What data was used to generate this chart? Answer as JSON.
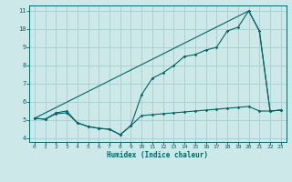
{
  "xlabel": "Humidex (Indice chaleur)",
  "background_color": "#cce8e8",
  "grid_color": "#aacccc",
  "line_color": "#006666",
  "xlim": [
    -0.5,
    23.5
  ],
  "ylim": [
    3.8,
    11.3
  ],
  "yticks": [
    4,
    5,
    6,
    7,
    8,
    9,
    10,
    11
  ],
  "xticks": [
    0,
    1,
    2,
    3,
    4,
    5,
    6,
    7,
    8,
    9,
    10,
    11,
    12,
    13,
    14,
    15,
    16,
    17,
    18,
    19,
    20,
    21,
    22,
    23
  ],
  "series_zigzag": {
    "x": [
      0,
      1,
      2,
      3,
      4,
      5,
      6,
      7,
      8,
      9,
      10,
      11,
      12,
      13,
      14,
      15,
      16,
      17,
      18,
      19,
      20,
      21,
      22,
      23
    ],
    "y": [
      5.1,
      5.05,
      5.4,
      5.5,
      4.85,
      4.65,
      4.55,
      4.5,
      4.2,
      4.7,
      6.4,
      7.3,
      7.6,
      8.0,
      8.5,
      8.6,
      8.85,
      9.0,
      9.9,
      10.1,
      11.0,
      9.9,
      5.5,
      5.55
    ]
  },
  "series_straight": {
    "x": [
      0,
      20,
      21,
      22,
      23
    ],
    "y": [
      5.1,
      11.0,
      9.9,
      5.5,
      5.55
    ]
  },
  "series_flat": {
    "x": [
      0,
      1,
      2,
      3,
      4,
      5,
      6,
      7,
      8,
      9,
      10,
      11,
      12,
      13,
      14,
      15,
      16,
      17,
      18,
      19,
      20,
      21,
      22,
      23
    ],
    "y": [
      5.1,
      5.05,
      5.35,
      5.4,
      4.85,
      4.65,
      4.55,
      4.5,
      4.2,
      4.7,
      5.25,
      5.3,
      5.35,
      5.4,
      5.45,
      5.5,
      5.55,
      5.6,
      5.65,
      5.7,
      5.75,
      5.5,
      5.5,
      5.55
    ]
  }
}
